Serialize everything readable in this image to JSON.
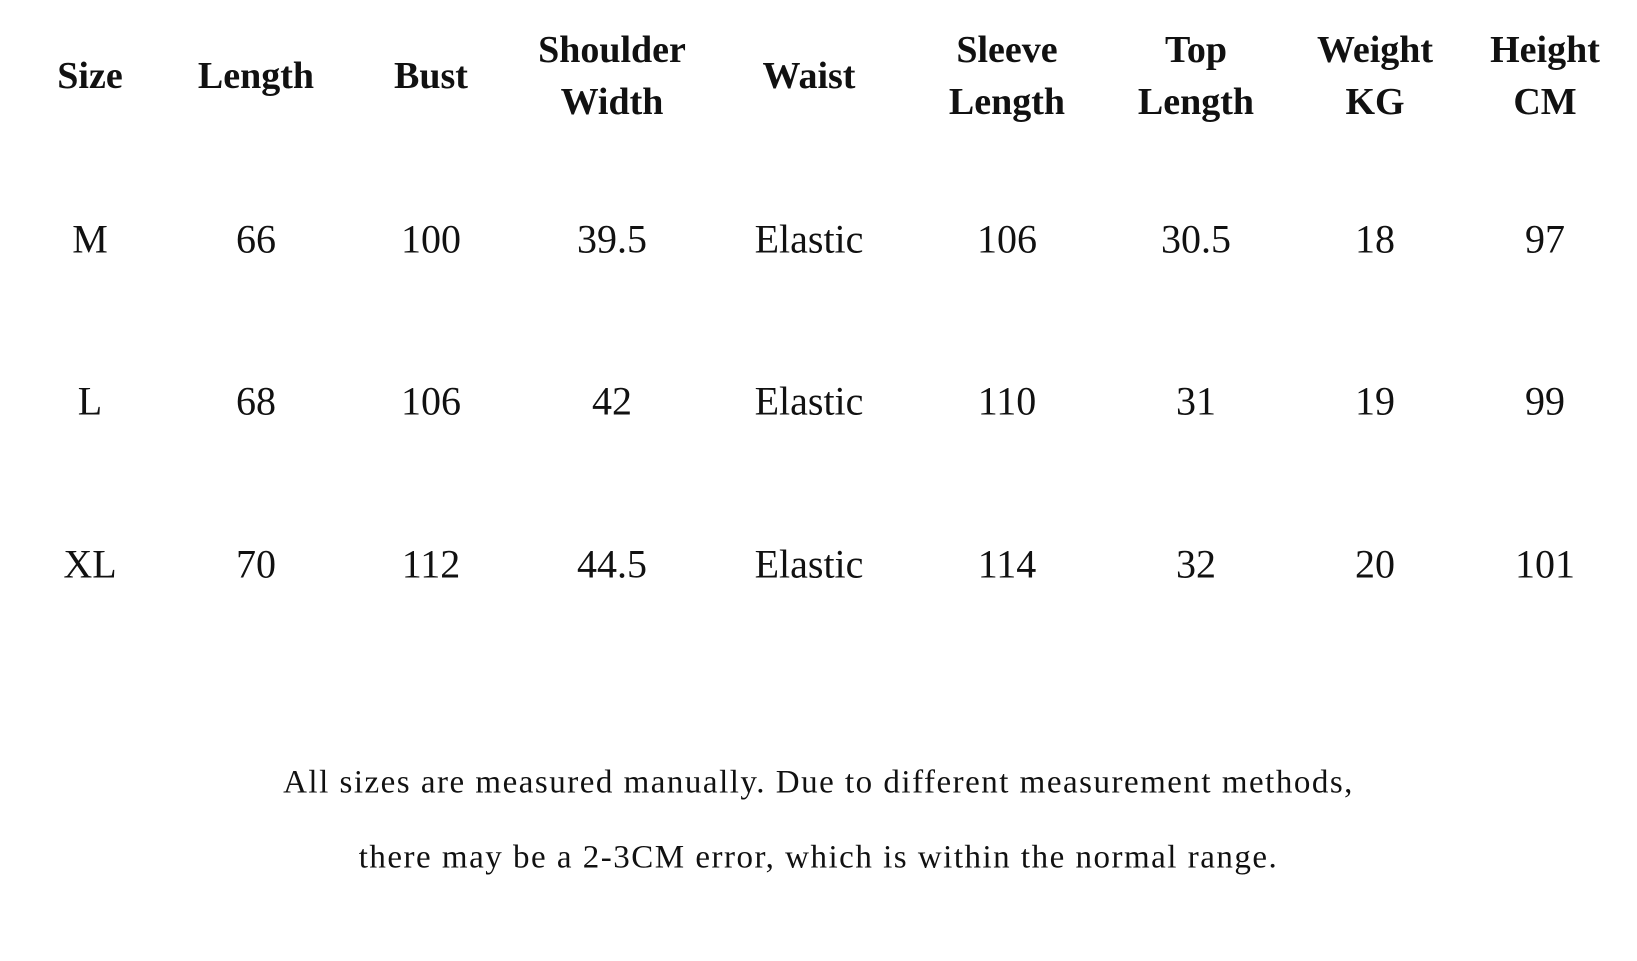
{
  "table": {
    "headers": [
      [
        "Size"
      ],
      [
        "Length"
      ],
      [
        "Bust"
      ],
      [
        "Shoulder",
        "Width"
      ],
      [
        "Waist"
      ],
      [
        "Sleeve",
        "Length"
      ],
      [
        "Top",
        "Length"
      ],
      [
        "Weight",
        "KG"
      ],
      [
        "Height",
        "CM"
      ]
    ],
    "rows": [
      [
        "M",
        66,
        100,
        39.5,
        "Elastic",
        106,
        30.5,
        18,
        97
      ],
      [
        "L",
        68,
        106,
        42,
        "Elastic",
        110,
        31,
        19,
        99
      ],
      [
        "XL",
        70,
        112,
        44.5,
        "Elastic",
        114,
        32,
        20,
        101
      ]
    ]
  },
  "note": [
    "All sizes are measured manually. Due to different measurement methods,",
    "there may be a 2-3CM error, which is within the normal range."
  ]
}
